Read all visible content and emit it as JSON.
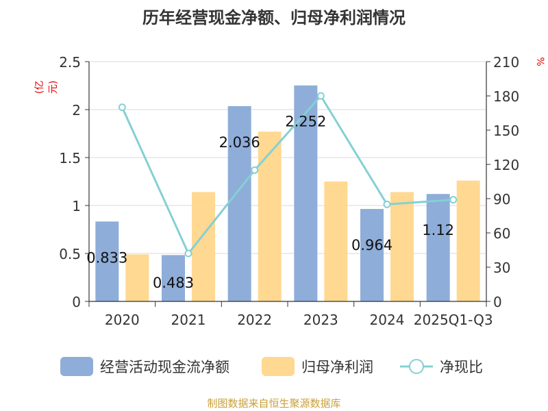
{
  "title": "历年经营现金净额、归母净利润情况",
  "unit_left": "(亿元)",
  "unit_right": "%",
  "source": "制图数据来自恒生聚源数据库",
  "colors": {
    "bar1": "#8eadd9",
    "bar2": "#ffd891",
    "line": "#84d0d4",
    "label_red": "#e00000"
  },
  "chart_data": {
    "type": "bar",
    "categories": [
      "2020",
      "2021",
      "2022",
      "2023",
      "2024",
      "2025Q1-Q3"
    ],
    "series": [
      {
        "name": "经营活动现金流净额",
        "type": "bar",
        "axis": "left",
        "values": [
          0.833,
          0.483,
          2.036,
          2.252,
          0.964,
          1.12
        ],
        "labels": [
          "0.833",
          "0.483",
          "2.036",
          "2.252",
          "0.964",
          "1.12"
        ]
      },
      {
        "name": "归母净利润",
        "type": "bar",
        "axis": "left",
        "values": [
          0.49,
          1.14,
          1.77,
          1.25,
          1.14,
          1.26
        ]
      },
      {
        "name": "净现比",
        "type": "line",
        "axis": "right",
        "values": [
          170,
          42,
          115,
          180,
          85,
          89
        ]
      }
    ],
    "y_left": {
      "min": 0,
      "max": 2.5,
      "ticks": [
        "0",
        "0.5",
        "1",
        "1.5",
        "2",
        "2.5"
      ]
    },
    "y_right": {
      "min": 0,
      "max": 210,
      "ticks": [
        "0",
        "30",
        "60",
        "90",
        "120",
        "150",
        "180",
        "210"
      ]
    },
    "grid": true,
    "legend_position": "bottom"
  }
}
